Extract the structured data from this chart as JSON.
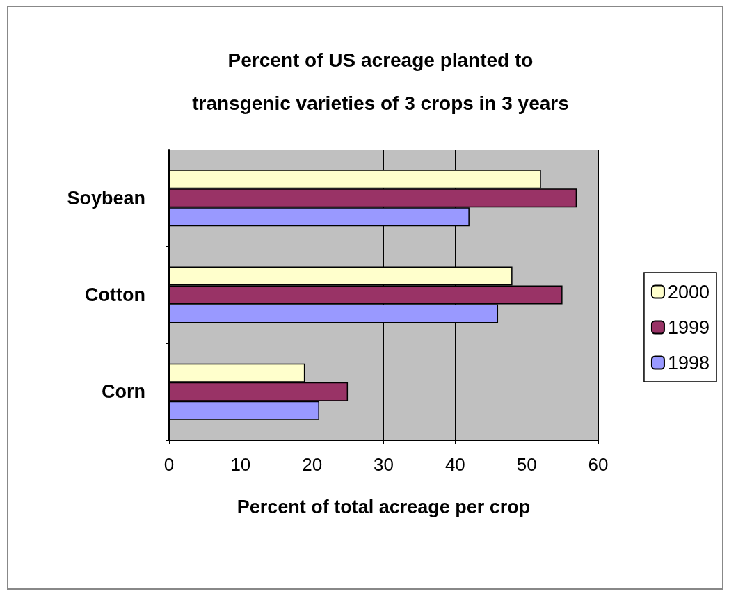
{
  "chart_data": {
    "type": "bar",
    "orientation": "horizontal",
    "title": "Percent of US acreage planted to\ntransgenic varieties of 3 crops in 3 years",
    "xlabel": "Percent of total acreage per crop",
    "categories": [
      "Soybean",
      "Cotton",
      "Corn"
    ],
    "series": [
      {
        "name": "2000",
        "color": "#ffffcc",
        "values": [
          52,
          48,
          19
        ]
      },
      {
        "name": "1999",
        "color": "#993366",
        "values": [
          57,
          55,
          25
        ]
      },
      {
        "name": "1998",
        "color": "#9999ff",
        "values": [
          42,
          46,
          21
        ]
      }
    ],
    "xlim": [
      0,
      60
    ],
    "xticks": [
      0,
      10,
      20,
      30,
      40,
      50,
      60
    ],
    "grid": "x",
    "legend": "right"
  }
}
